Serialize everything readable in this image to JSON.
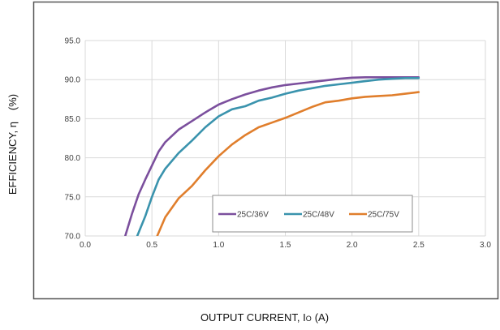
{
  "chart_data": {
    "type": "line",
    "xlabel": "OUTPUT CURRENT, I",
    "xlabel_subscript": "O",
    "xlabel_unit": "(A)",
    "ylabel_quantity": "EFFICIENCY, η",
    "ylabel_unit": "(%)",
    "xlim": [
      0.0,
      3.0
    ],
    "ylim": [
      70.0,
      95.0
    ],
    "x_ticks": [
      "0.0",
      "0.5",
      "1.0",
      "1.5",
      "2.0",
      "2.5",
      "3.0"
    ],
    "y_ticks": [
      "70.0",
      "75.0",
      "80.0",
      "85.0",
      "90.0",
      "95.0"
    ],
    "grid": "both",
    "legend_position": "lower-right",
    "series": [
      {
        "name": "25C/36V",
        "color": "#7B4F9D",
        "x": [
          0.3,
          0.35,
          0.4,
          0.45,
          0.5,
          0.55,
          0.6,
          0.7,
          0.8,
          0.9,
          1.0,
          1.1,
          1.2,
          1.3,
          1.4,
          1.5,
          1.6,
          1.7,
          1.8,
          1.9,
          2.0,
          2.1,
          2.2,
          2.3,
          2.4,
          2.5
        ],
        "y": [
          70.0,
          72.8,
          75.3,
          77.2,
          79.0,
          80.8,
          82.0,
          83.6,
          84.7,
          85.8,
          86.8,
          87.5,
          88.1,
          88.6,
          89.0,
          89.3,
          89.5,
          89.7,
          89.9,
          90.1,
          90.25,
          90.3,
          90.3,
          90.3,
          90.3,
          90.3
        ]
      },
      {
        "name": "25C/48V",
        "color": "#3A93AD",
        "x": [
          0.39,
          0.45,
          0.5,
          0.55,
          0.6,
          0.7,
          0.8,
          0.9,
          1.0,
          1.1,
          1.2,
          1.3,
          1.4,
          1.5,
          1.6,
          1.7,
          1.8,
          1.9,
          2.0,
          2.1,
          2.2,
          2.3,
          2.4,
          2.5
        ],
        "y": [
          70.0,
          72.5,
          75.0,
          77.2,
          78.6,
          80.6,
          82.2,
          83.9,
          85.3,
          86.2,
          86.6,
          87.3,
          87.7,
          88.2,
          88.6,
          88.9,
          89.2,
          89.4,
          89.6,
          89.8,
          90.0,
          90.1,
          90.2,
          90.2
        ]
      },
      {
        "name": "25C/75V",
        "color": "#E07E2C",
        "x": [
          0.54,
          0.6,
          0.7,
          0.8,
          0.9,
          1.0,
          1.1,
          1.2,
          1.3,
          1.4,
          1.5,
          1.6,
          1.7,
          1.8,
          1.9,
          2.0,
          2.1,
          2.2,
          2.3,
          2.4,
          2.5
        ],
        "y": [
          70.0,
          72.4,
          74.8,
          76.4,
          78.4,
          80.2,
          81.7,
          82.9,
          83.9,
          84.5,
          85.1,
          85.8,
          86.5,
          87.1,
          87.3,
          87.6,
          87.8,
          87.9,
          88.0,
          88.2,
          88.4
        ]
      }
    ]
  }
}
